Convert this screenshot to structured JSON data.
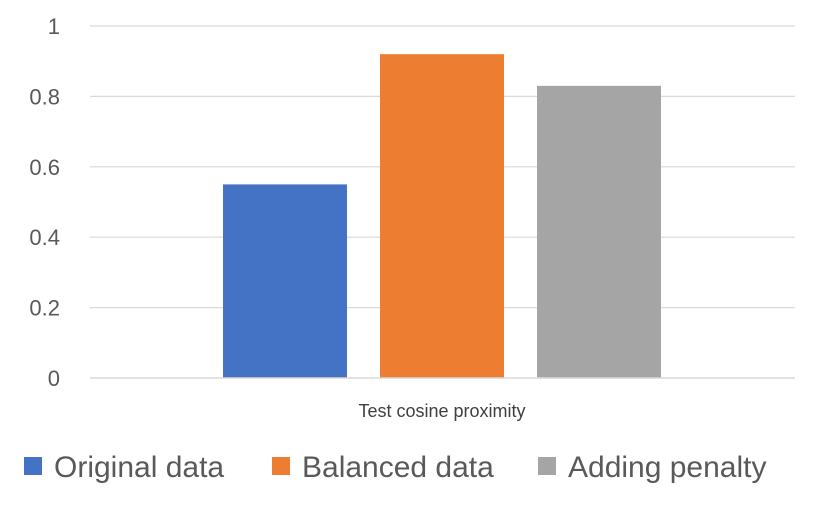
{
  "chart_data": {
    "type": "bar",
    "categories": [
      "Test cosine proximity"
    ],
    "series": [
      {
        "name": "Original data",
        "values": [
          0.55
        ],
        "color": "#4472C4"
      },
      {
        "name": "Balanced data",
        "values": [
          0.92
        ],
        "color": "#ED7D31"
      },
      {
        "name": "Adding penalty",
        "values": [
          0.83
        ],
        "color": "#A5A5A5"
      }
    ],
    "title": "",
    "xlabel": "",
    "ylabel": "",
    "ylim": [
      0,
      1
    ],
    "yticks": [
      "0",
      "0.2",
      "0.4",
      "0.6",
      "0.8",
      "1"
    ],
    "grid": true,
    "legend_position": "bottom"
  }
}
